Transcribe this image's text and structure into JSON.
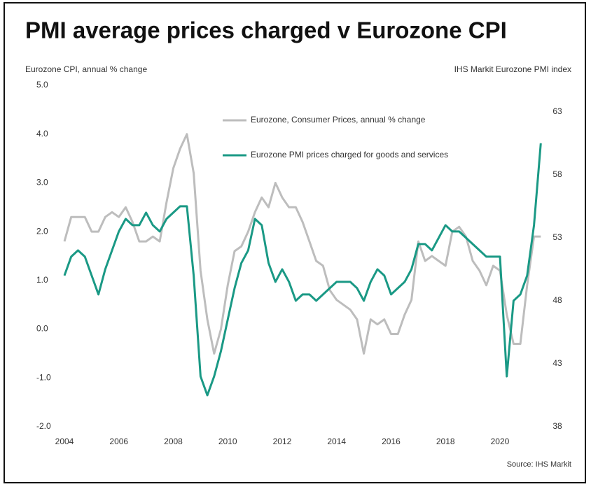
{
  "chart_data": {
    "type": "line",
    "title": "PMI average prices charged v Eurozone CPI",
    "y_label": "Eurozone CPI, annual % change",
    "y2_label": "IHS Markit Eurozone PMI index",
    "source": "Source: IHS Markit",
    "xlim": [
      2004,
      2021.75
    ],
    "xticks": [
      2004,
      2006,
      2008,
      2010,
      2012,
      2014,
      2016,
      2018,
      2020
    ],
    "ylim": [
      -2,
      5
    ],
    "yticks": [
      {
        "value": -2,
        "label": "-2.0"
      },
      {
        "value": -1,
        "label": "-1.0"
      },
      {
        "value": 0,
        "label": "0.0"
      },
      {
        "value": 1,
        "label": "1.0"
      },
      {
        "value": 2,
        "label": "2.0"
      },
      {
        "value": 3,
        "label": "3.0"
      },
      {
        "value": 4,
        "label": "4.0"
      },
      {
        "value": 5,
        "label": "5.0"
      }
    ],
    "y2lim": [
      38,
      65.1
    ],
    "y2ticks": [
      38,
      43,
      48,
      53,
      58,
      63
    ],
    "grid": false,
    "x": [
      2004,
      2004.25,
      2004.5,
      2004.75,
      2005,
      2005.25,
      2005.5,
      2005.75,
      2006,
      2006.25,
      2006.5,
      2006.75,
      2007,
      2007.25,
      2007.5,
      2007.75,
      2008,
      2008.25,
      2008.5,
      2008.75,
      2009,
      2009.25,
      2009.5,
      2009.75,
      2010,
      2010.25,
      2010.5,
      2010.75,
      2011,
      2011.25,
      2011.5,
      2011.75,
      2012,
      2012.25,
      2012.5,
      2012.75,
      2013,
      2013.25,
      2013.5,
      2013.75,
      2014,
      2014.25,
      2014.5,
      2014.75,
      2015,
      2015.25,
      2015.5,
      2015.75,
      2016,
      2016.25,
      2016.5,
      2016.75,
      2017,
      2017.25,
      2017.5,
      2017.75,
      2018,
      2018.25,
      2018.5,
      2018.75,
      2019,
      2019.25,
      2019.5,
      2019.75,
      2020,
      2020.25,
      2020.5,
      2020.75,
      2021,
      2021.25,
      2021.5
    ],
    "series": [
      {
        "name": "Eurozone, Consumer Prices, annual % change",
        "color": "#bdbdbd",
        "axis": "y",
        "values": [
          1.8,
          2.3,
          2.3,
          2.3,
          2.0,
          2.0,
          2.3,
          2.4,
          2.3,
          2.5,
          2.2,
          1.8,
          1.8,
          1.9,
          1.8,
          2.6,
          3.3,
          3.7,
          4.0,
          3.2,
          1.2,
          0.2,
          -0.5,
          0.0,
          0.9,
          1.6,
          1.7,
          2.0,
          2.4,
          2.7,
          2.5,
          3.0,
          2.7,
          2.5,
          2.5,
          2.2,
          1.8,
          1.4,
          1.3,
          0.8,
          0.6,
          0.5,
          0.4,
          0.2,
          -0.5,
          0.2,
          0.1,
          0.2,
          -0.1,
          -0.1,
          0.3,
          0.6,
          1.8,
          1.4,
          1.5,
          1.4,
          1.3,
          2.0,
          2.1,
          1.9,
          1.4,
          1.2,
          0.9,
          1.3,
          1.2,
          0.3,
          -0.3,
          -0.3,
          0.9,
          1.9,
          1.9
        ]
      },
      {
        "name": "Eurozone PMI prices charged for goods and services",
        "color": "#1a9985",
        "axis": "y2",
        "values": [
          50,
          51.5,
          52,
          51.5,
          50,
          48.5,
          50.5,
          52,
          53.5,
          54.5,
          54,
          54,
          55,
          54,
          53.5,
          54.5,
          55,
          55.5,
          55.5,
          50,
          42,
          40.5,
          42,
          44,
          46.5,
          49,
          51,
          52,
          54.5,
          54,
          51,
          49.5,
          50.5,
          49.5,
          48,
          48.5,
          48.5,
          48,
          48.5,
          49,
          49.5,
          49.5,
          49.5,
          49,
          48,
          49.5,
          50.5,
          50,
          48.5,
          49,
          49.5,
          50.5,
          52.5,
          52.5,
          52,
          53,
          54,
          53.5,
          53.5,
          53,
          52.5,
          52,
          51.5,
          51.5,
          51.5,
          42,
          48,
          48.5,
          50,
          54,
          60.5
        ]
      }
    ]
  }
}
